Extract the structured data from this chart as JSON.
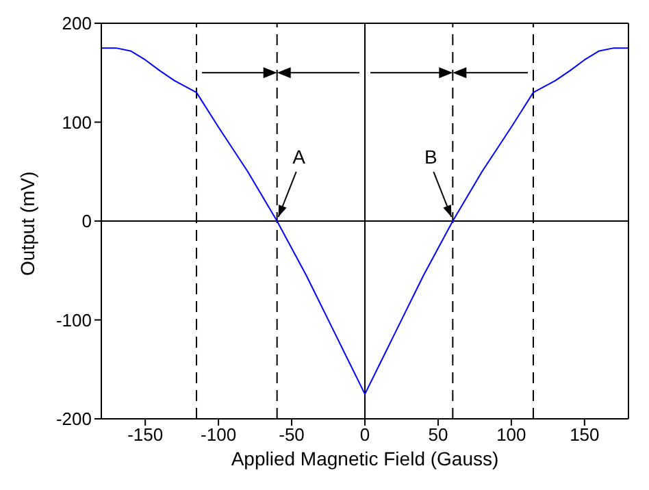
{
  "chart_data": {
    "type": "line",
    "xlabel": "Applied Magnetic Field (Gauss)",
    "ylabel": "Output (mV)",
    "x": [
      -180,
      -170,
      -160,
      -150,
      -140,
      -130,
      -115,
      -100,
      -80,
      -60,
      -40,
      -20,
      -10,
      0,
      10,
      20,
      40,
      60,
      80,
      100,
      115,
      130,
      140,
      150,
      160,
      170,
      180
    ],
    "series": [
      {
        "color": "#0000ff",
        "values": [
          175,
          175,
          172,
          163,
          152,
          142,
          130,
          95,
          50,
          0,
          -55,
          -115,
          -145,
          -175,
          -145,
          -115,
          -55,
          0,
          50,
          95,
          130,
          142,
          152,
          163,
          172,
          175,
          175
        ]
      }
    ],
    "xlim": [
      -180,
      180
    ],
    "xticks": [
      -150,
      -100,
      -50,
      0,
      50,
      100,
      150
    ],
    "ylim": [
      -200,
      200
    ],
    "yticks": [
      -200,
      -100,
      0,
      100,
      200
    ],
    "marker": "none",
    "line_style": "solid",
    "ref_lines": [
      {
        "axis": "x",
        "value": -115,
        "line_style": "dashed",
        "color": "#000000"
      },
      {
        "axis": "x",
        "value": -60,
        "line_style": "dashed",
        "color": "#000000"
      },
      {
        "axis": "x",
        "value": 0,
        "line_style": "solid",
        "color": "#000000"
      },
      {
        "axis": "x",
        "value": 60,
        "line_style": "dashed",
        "color": "#000000"
      },
      {
        "axis": "x",
        "value": 115,
        "line_style": "dashed",
        "color": "#000000"
      },
      {
        "axis": "y",
        "value": 0,
        "line_style": "solid",
        "color": "#000000"
      }
    ],
    "annotations": [
      {
        "text": "A",
        "x": -60,
        "y": 0
      },
      {
        "text": "B",
        "x": 60,
        "y": 0
      }
    ]
  }
}
